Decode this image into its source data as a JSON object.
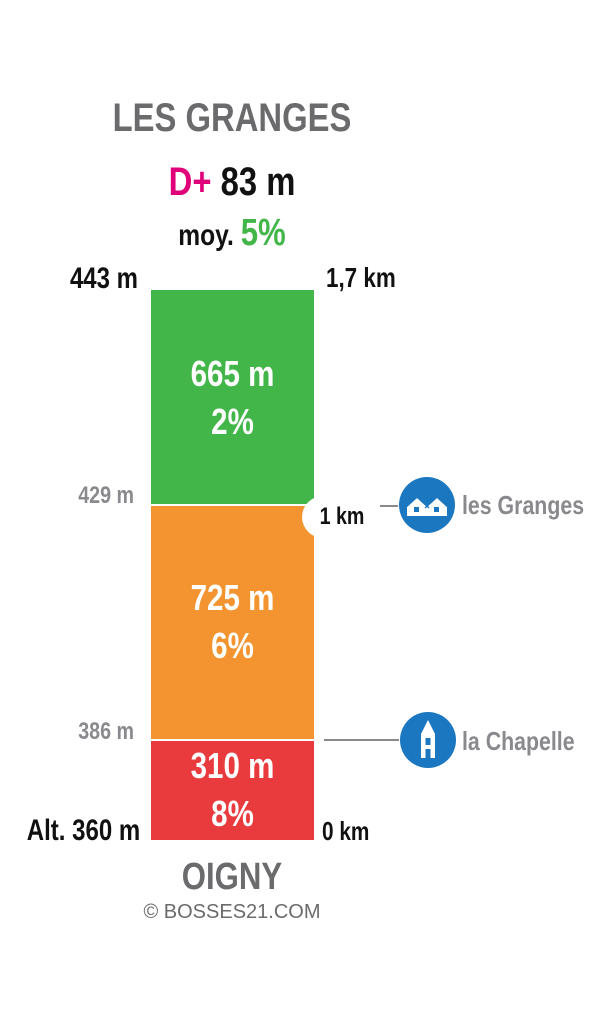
{
  "chart_data": {
    "type": "bar",
    "title": "LES GRANGES",
    "subtitle": "OIGNY",
    "elevation_gain": {
      "label": "D+",
      "value": "83 m"
    },
    "average": {
      "label": "moy.",
      "value": "5%"
    },
    "altitude_labels": {
      "bottom": "Alt. 360 m",
      "l1": "386 m",
      "l2": "429 m",
      "top": "443 m"
    },
    "distance_labels": {
      "start": "0 km",
      "mid": "1 km",
      "end": "1,7 km"
    },
    "segments": [
      {
        "length_m": 310,
        "length_label": "310 m",
        "grade_label": "8%",
        "color": "#e93a3e"
      },
      {
        "length_m": 725,
        "length_label": "725 m",
        "grade_label": "6%",
        "color": "#f39431"
      },
      {
        "length_m": 665,
        "length_label": "665 m",
        "grade_label": "2%",
        "color": "#43b649"
      }
    ],
    "points_of_interest": [
      {
        "name": "la Chapelle",
        "icon": "chapel-icon"
      },
      {
        "name": "les Granges",
        "icon": "houses-icon"
      }
    ]
  },
  "copyright": "© BOSSES21.COM"
}
